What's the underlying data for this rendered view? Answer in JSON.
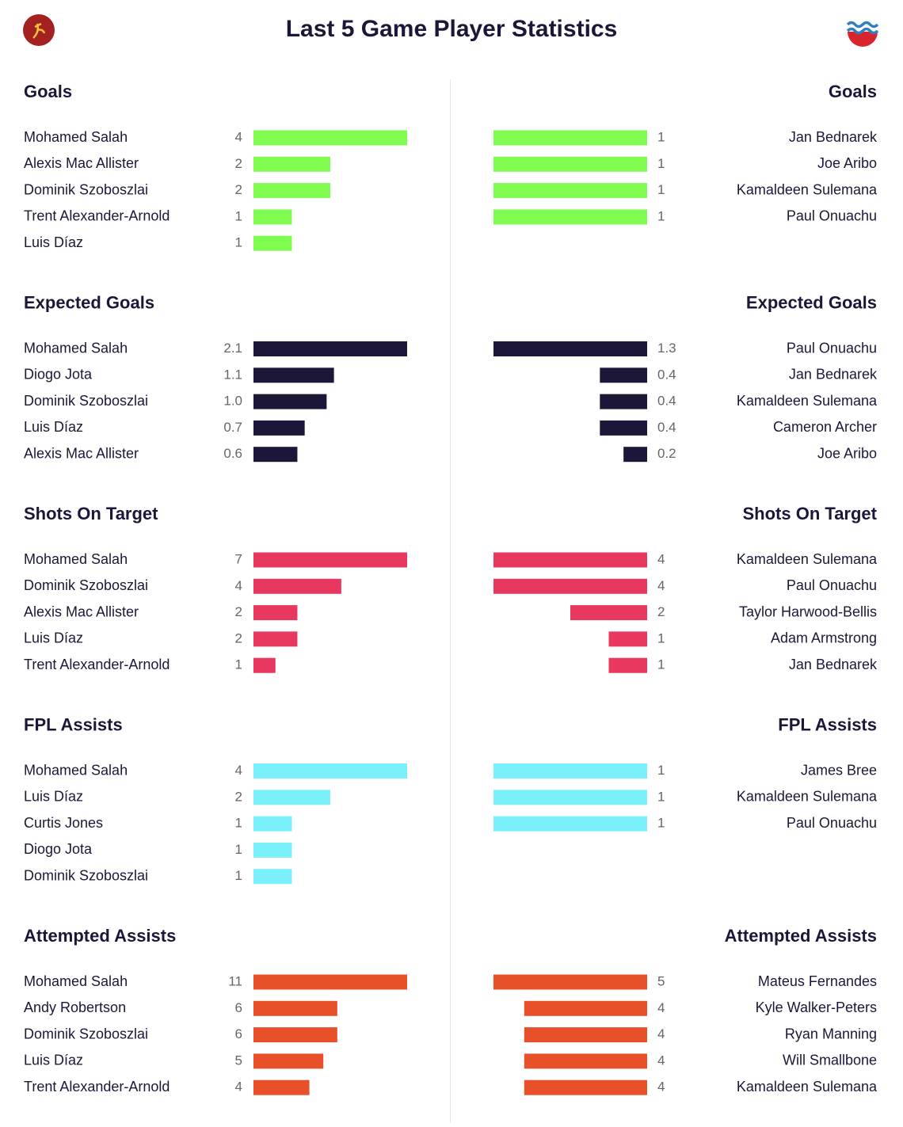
{
  "header": {
    "title": "Last 5 Game Player Statistics"
  },
  "sections": [
    {
      "title": "Goals",
      "color": "#80fc50",
      "home": {
        "categories": [
          "Mohamed Salah",
          "Alexis Mac Allister",
          "Dominik Szoboszlai",
          "Trent Alexander-Arnold",
          "Luis Díaz"
        ],
        "values": [
          4,
          2,
          2,
          1,
          1
        ]
      },
      "away": {
        "categories": [
          "Jan Bednarek",
          "Joe Aribo",
          "Kamaldeen Sulemana",
          "Paul Onuachu"
        ],
        "values": [
          1,
          1,
          1,
          1
        ]
      }
    },
    {
      "title": "Expected Goals",
      "color": "#1c1738",
      "home": {
        "categories": [
          "Mohamed Salah",
          "Diogo Jota",
          "Dominik Szoboszlai",
          "Luis Díaz",
          "Alexis Mac Allister"
        ],
        "values": [
          2.1,
          1.1,
          1,
          0.7,
          0.6
        ],
        "value_labels": [
          "2.1",
          "1.1",
          "1.0",
          "0.7",
          "0.6"
        ]
      },
      "away": {
        "categories": [
          "Paul Onuachu",
          "Jan Bednarek",
          "Kamaldeen Sulemana",
          "Cameron Archer",
          "Joe Aribo"
        ],
        "values": [
          1.3,
          0.4,
          0.4,
          0.4,
          0.2
        ]
      }
    },
    {
      "title": "Shots On Target",
      "color": "#e8385f",
      "home": {
        "categories": [
          "Mohamed Salah",
          "Dominik Szoboszlai",
          "Alexis Mac Allister",
          "Luis Díaz",
          "Trent Alexander-Arnold"
        ],
        "values": [
          7,
          4,
          2,
          2,
          1
        ]
      },
      "away": {
        "categories": [
          "Kamaldeen Sulemana",
          "Paul Onuachu",
          "Taylor Harwood-Bellis",
          "Adam Armstrong",
          "Jan Bednarek"
        ],
        "values": [
          4,
          4,
          2,
          1,
          1
        ]
      }
    },
    {
      "title": "FPL Assists",
      "color": "#79f0fa",
      "home": {
        "categories": [
          "Mohamed Salah",
          "Luis Díaz",
          "Curtis Jones",
          "Diogo Jota",
          "Dominik Szoboszlai"
        ],
        "values": [
          4,
          2,
          1,
          1,
          1
        ]
      },
      "away": {
        "categories": [
          "James Bree",
          "Kamaldeen Sulemana",
          "Paul Onuachu"
        ],
        "values": [
          1,
          1,
          1
        ]
      }
    },
    {
      "title": "Attempted Assists",
      "color": "#e8502a",
      "home": {
        "categories": [
          "Mohamed Salah",
          "Andy Robertson",
          "Dominik Szoboszlai",
          "Luis Díaz",
          "Trent Alexander-Arnold"
        ],
        "values": [
          11,
          6,
          6,
          5,
          4
        ]
      },
      "away": {
        "categories": [
          "Mateus Fernandes",
          "Kyle Walker-Peters",
          "Ryan Manning",
          "Will Smallbone",
          "Kamaldeen Sulemana"
        ],
        "values": [
          5,
          4,
          4,
          4,
          4
        ]
      }
    }
  ]
}
